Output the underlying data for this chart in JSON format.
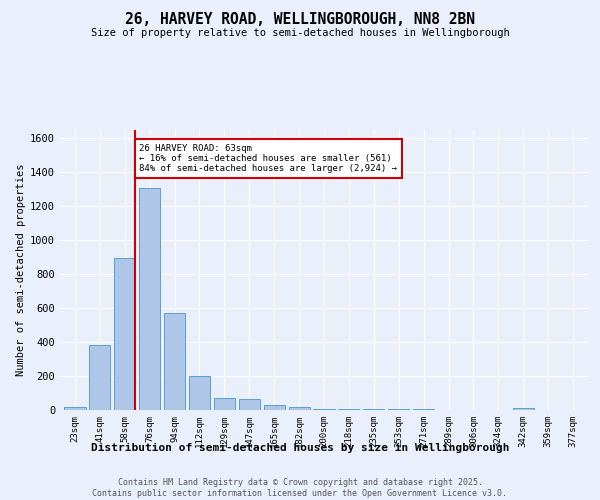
{
  "title": "26, HARVEY ROAD, WELLINGBOROUGH, NN8 2BN",
  "subtitle": "Size of property relative to semi-detached houses in Wellingborough",
  "xlabel": "Distribution of semi-detached houses by size in Wellingborough",
  "ylabel": "Number of semi-detached properties",
  "categories": [
    "23sqm",
    "41sqm",
    "58sqm",
    "76sqm",
    "94sqm",
    "112sqm",
    "129sqm",
    "147sqm",
    "165sqm",
    "182sqm",
    "200sqm",
    "218sqm",
    "235sqm",
    "253sqm",
    "271sqm",
    "289sqm",
    "306sqm",
    "324sqm",
    "342sqm",
    "359sqm",
    "377sqm"
  ],
  "values": [
    20,
    385,
    895,
    1310,
    570,
    200,
    70,
    65,
    27,
    15,
    5,
    5,
    3,
    3,
    3,
    2,
    0,
    0,
    12,
    0,
    0
  ],
  "bar_color": "#aec6e8",
  "bar_edge_color": "#5a9fd4",
  "vline_color": "#cc0000",
  "vline_pos": 2.43,
  "annotation_title": "26 HARVEY ROAD: 63sqm",
  "annotation_line2": "← 16% of semi-detached houses are smaller (561)",
  "annotation_line3": "84% of semi-detached houses are larger (2,924) →",
  "annotation_box_color": "#cc0000",
  "ylim": [
    0,
    1650
  ],
  "yticks": [
    0,
    200,
    400,
    600,
    800,
    1000,
    1200,
    1400,
    1600
  ],
  "bg_color": "#eaf0fb",
  "grid_color": "#ffffff",
  "footer1": "Contains HM Land Registry data © Crown copyright and database right 2025.",
  "footer2": "Contains public sector information licensed under the Open Government Licence v3.0."
}
